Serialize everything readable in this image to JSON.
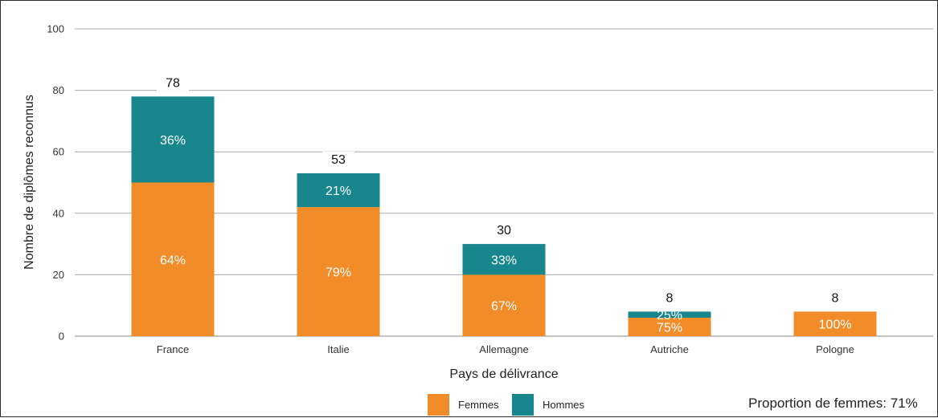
{
  "chart_data": {
    "type": "bar",
    "stacked": true,
    "categories": [
      "France",
      "Italie",
      "Allemagne",
      "Autriche",
      "Pologne"
    ],
    "totals": [
      78,
      53,
      30,
      8,
      8
    ],
    "series": [
      {
        "name": "Femmes",
        "color": "#f28c28",
        "values": [
          50,
          42,
          20,
          6,
          8
        ],
        "labels": [
          "64%",
          "79%",
          "67%",
          "75%",
          "100%"
        ]
      },
      {
        "name": "Hommes",
        "color": "#17878d",
        "values": [
          28,
          11,
          10,
          2,
          0
        ],
        "labels": [
          "36%",
          "21%",
          "33%",
          "25%",
          ""
        ]
      }
    ],
    "xlabel": "Pays de délivrance",
    "ylabel": "Nombre de diplômes reconnus",
    "ylim": [
      0,
      100
    ],
    "yticks": [
      0,
      20,
      40,
      60,
      80,
      100
    ],
    "grid": true,
    "legend_position": "bottom"
  },
  "footer_note": "Proportion de femmes: 71%"
}
